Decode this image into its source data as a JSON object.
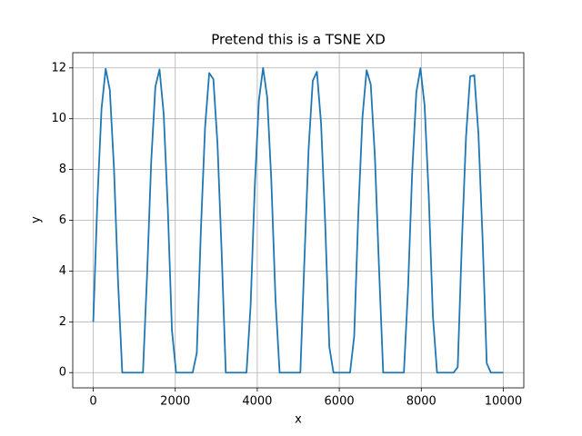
{
  "chart_data": {
    "type": "line",
    "title": "Pretend this is a TSNE XD",
    "x_label": "x",
    "y_label": "y",
    "x": [
      0,
      101.01,
      202.02,
      303.03,
      404.04,
      505.05,
      606.06,
      707.07,
      808.08,
      909.09,
      1010.1,
      1111.11,
      1212.12,
      1313.13,
      1414.14,
      1515.15,
      1616.16,
      1717.17,
      1818.18,
      1919.19,
      2020.2,
      2121.21,
      2222.22,
      2323.23,
      2424.24,
      2525.25,
      2626.26,
      2727.27,
      2828.28,
      2929.29,
      3030.3,
      3131.31,
      3232.32,
      3333.33,
      3434.34,
      3535.35,
      3636.36,
      3737.37,
      3838.38,
      3939.39,
      4040.4,
      4141.41,
      4242.42,
      4343.43,
      4444.44,
      4545.45,
      4646.46,
      4747.47,
      4848.48,
      4949.49,
      5050.51,
      5151.52,
      5252.53,
      5353.54,
      5454.55,
      5555.56,
      5656.57,
      5757.58,
      5858.59,
      5959.6,
      6060.61,
      6161.62,
      6262.63,
      6363.64,
      6464.65,
      6565.66,
      6666.67,
      6767.68,
      6868.69,
      6969.7,
      7070.71,
      7171.72,
      7272.73,
      7373.74,
      7474.75,
      7575.76,
      7676.77,
      7777.78,
      7878.79,
      7979.8,
      8080.81,
      8181.82,
      8282.83,
      8383.84,
      8484.85,
      8585.86,
      8686.87,
      8787.88,
      8888.89,
      8989.9,
      9090.91,
      9191.92,
      9292.93,
      9393.94,
      9494.95,
      9595.96,
      9696.97,
      9797.98,
      9898.99,
      10000
    ],
    "values": [
      2,
      6.78,
      10.39,
      11.97,
      11.13,
      8.07,
      3.54,
      0,
      0,
      0,
      0,
      0,
      0,
      3.87,
      8.33,
      11.26,
      11.94,
      10.21,
      6.48,
      1.67,
      0,
      0,
      0,
      0,
      0,
      0.78,
      5.67,
      9.67,
      11.8,
      11.56,
      9,
      4.74,
      0,
      0,
      0,
      0,
      0,
      0,
      2.66,
      7.34,
      10.73,
      12,
      10.84,
      7.54,
      2.89,
      0,
      0,
      0,
      0,
      0,
      0,
      4.51,
      8.83,
      11.49,
      11.85,
      9.82,
      5.89,
      1.02,
      0,
      0,
      0,
      0,
      0,
      1.43,
      6.27,
      10.07,
      11.91,
      11.35,
      8.51,
      4.1,
      0,
      0,
      0,
      0,
      0,
      0,
      3.31,
      7.88,
      11.03,
      11.99,
      10.52,
      6.98,
      2.24,
      0,
      0,
      0,
      0,
      0,
      0.22,
      5.14,
      9.29,
      11.67,
      11.71,
      9.39,
      5.28,
      0.37,
      0,
      0,
      0,
      0
    ],
    "color": "#1f77b4",
    "xlim": [
      -500,
      10500
    ],
    "ylim": [
      -0.6,
      12.6
    ],
    "xticks": [
      0,
      2000,
      4000,
      6000,
      8000,
      10000
    ],
    "yticks": [
      0,
      2,
      4,
      6,
      8,
      10,
      12
    ],
    "grid": true
  }
}
